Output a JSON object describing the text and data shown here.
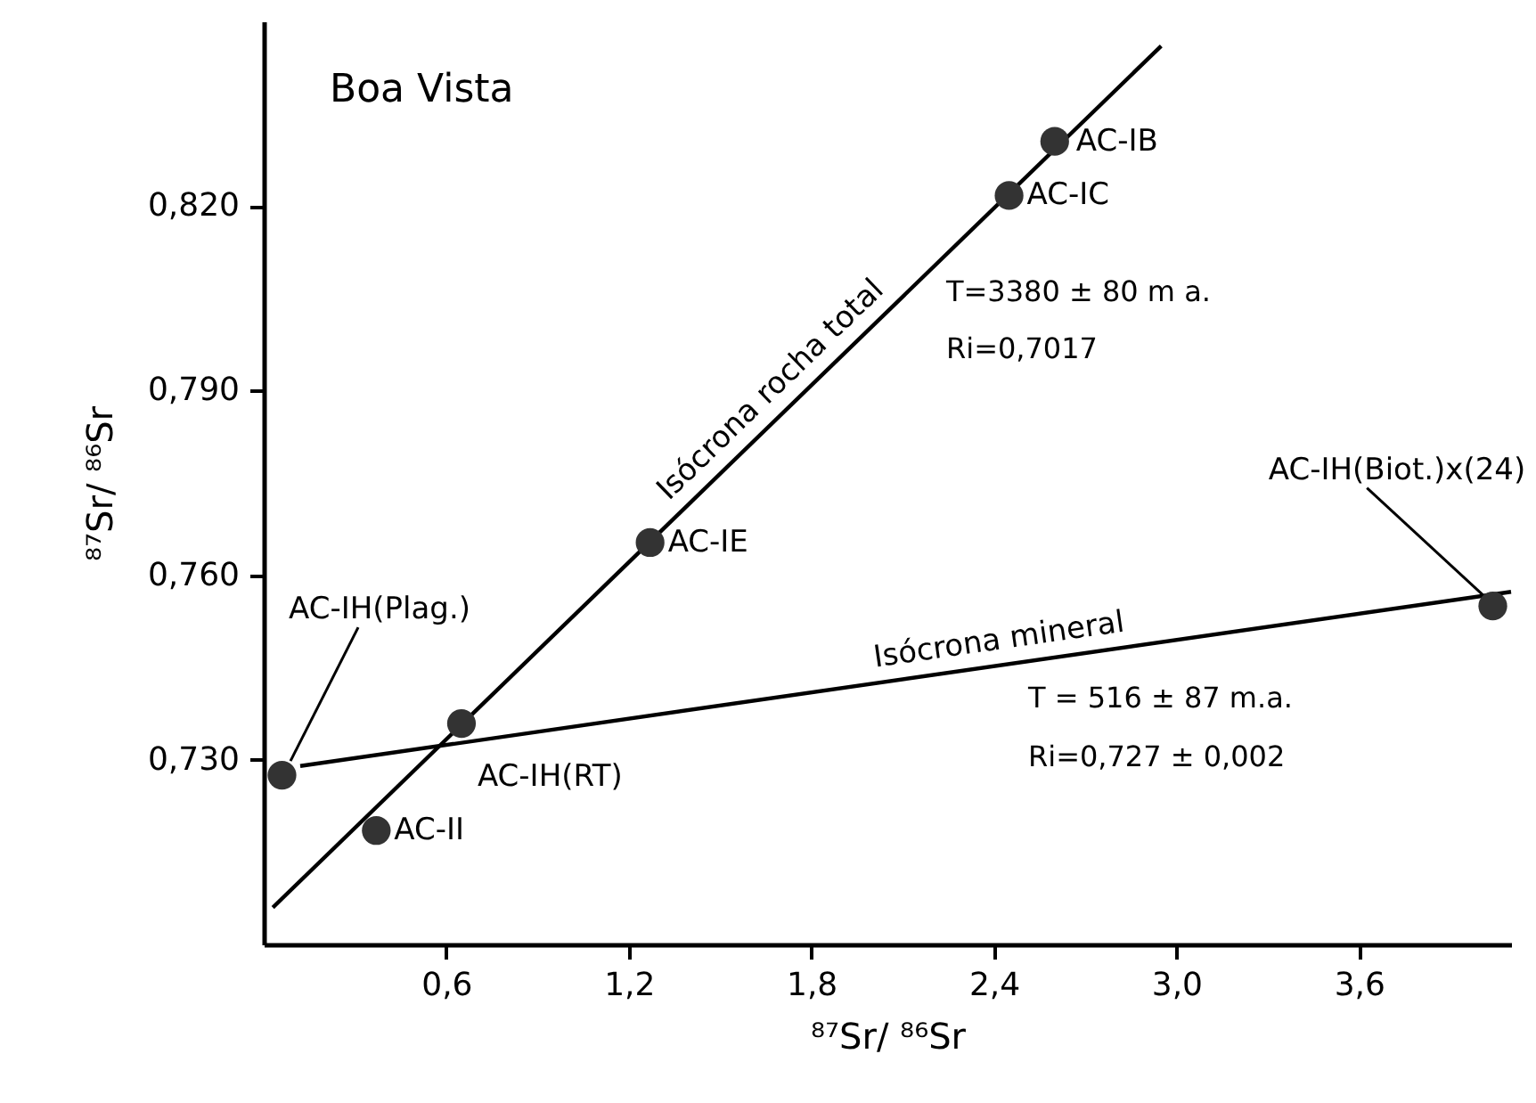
{
  "chart_data": {
    "type": "scatter",
    "xlabel": "⁸⁷Sr/ ⁸⁶Sr",
    "ylabel": "⁸⁷Sr/ ⁸⁶Sr",
    "xlim": [
      0,
      4.1
    ],
    "ylim": [
      0.7,
      0.85
    ],
    "xticks": [
      {
        "value": 0.6,
        "label": "0,6"
      },
      {
        "value": 1.2,
        "label": "1,2"
      },
      {
        "value": 1.8,
        "label": "1,8"
      },
      {
        "value": 2.4,
        "label": "2,4"
      },
      {
        "value": 3.0,
        "label": "3,0"
      },
      {
        "value": 3.6,
        "label": "3,6"
      }
    ],
    "yticks": [
      {
        "value": 0.73,
        "label": "0,730"
      },
      {
        "value": 0.76,
        "label": "0,760"
      },
      {
        "value": 0.79,
        "label": "0,790"
      },
      {
        "value": 0.82,
        "label": "0,820"
      }
    ],
    "line_style": "solid",
    "series": [
      {
        "marker": "circle",
        "color": "#333333",
        "x": [
          2.6,
          2.45,
          1.27,
          0.65,
          0.37,
          0.06,
          4.04
        ],
        "values": [
          0.8305,
          0.8217,
          0.7653,
          0.7359,
          0.7185,
          0.7275,
          0.755
        ]
      },
      {
        "type": "line",
        "name": "Isócrona rocha total",
        "color": "#000000",
        "x": [
          0.03,
          2.95
        ],
        "values": [
          0.706,
          0.846
        ]
      },
      {
        "type": "line",
        "name": "Isócrona mineral",
        "color": "#000000",
        "x": [
          0.12,
          4.1
        ],
        "values": [
          0.729,
          0.7573
        ]
      }
    ],
    "annotations": [
      {
        "text": "AC-IB",
        "x": 2.6,
        "y": 0.8305
      },
      {
        "text": "AC-IC",
        "x": 2.45,
        "y": 0.8217
      },
      {
        "text": "AC-IE",
        "x": 1.27,
        "y": 0.7653
      },
      {
        "text": "AC-IH(RT)",
        "x": 0.65,
        "y": 0.7359
      },
      {
        "text": "AC-II",
        "x": 0.37,
        "y": 0.7185
      },
      {
        "text": "AC-IH(Plag.)",
        "x": 0.088,
        "y": 0.7298
      },
      {
        "text": "AC-IH(Biot.)x(24)",
        "x": 4.007,
        "y": 0.7568
      },
      "Boa Vista",
      "T=3380 ± 80 m a.",
      "Ri=0,7017",
      "T = 516 ± 87 m.a.",
      "Ri=0,727 ± 0,002"
    ]
  }
}
